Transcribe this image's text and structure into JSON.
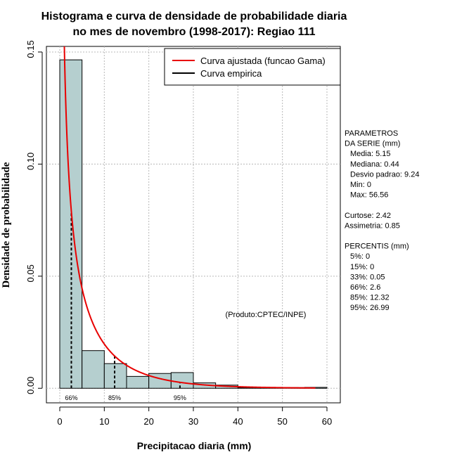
{
  "chart_data": {
    "type": "bar",
    "title_lines": [
      "Histograma e curva de densidade de probabilidade diaria",
      "no mes de novembro (1998-2017): Regiao 111"
    ],
    "xlabel": "Precipitacao diaria (mm)",
    "ylabel": "Densidade de probabilidade",
    "xlim": [
      -3,
      63
    ],
    "ylim": [
      -0.0065,
      0.1525
    ],
    "x_ticks": [
      0,
      10,
      20,
      30,
      40,
      50,
      60
    ],
    "x_tick_labels": [
      "0",
      "10",
      "20",
      "30",
      "40",
      "50",
      "60"
    ],
    "y_ticks": [
      0.0,
      0.05,
      0.1,
      0.15
    ],
    "y_tick_labels": [
      "0.00",
      "0.05",
      "0.10",
      "0.15"
    ],
    "bin_edges": [
      0,
      5,
      10,
      15,
      20,
      25,
      30,
      35,
      40,
      45,
      50,
      55,
      60
    ],
    "bar_values": [
      0.1465,
      0.0168,
      0.011,
      0.0053,
      0.0066,
      0.007,
      0.0024,
      0.0014,
      0.0003,
      0.0003,
      0.0003,
      0.0004
    ],
    "bar_fill": "#b5cfcf",
    "curve": {
      "name": "Curva ajustada (funcao Gama)",
      "color": "#e80000",
      "type": "gamma",
      "shape": 0.44,
      "scale": 11.7
    },
    "empirical": {
      "name": "Curva empirica",
      "color": "#000000"
    },
    "percentile_markers": [
      {
        "x": 2.6,
        "label": "66%"
      },
      {
        "x": 12.32,
        "label": "85%"
      },
      {
        "x": 26.99,
        "label": "95%"
      }
    ],
    "legend_position": "top-right",
    "credit": "(Produto:CPTEC/INPE)",
    "stats_lines": [
      "PARAMETROS",
      "DA SERIE (mm)",
      "  Media: 5.15",
      "  Mediana: 0.44",
      "  Desvio padrao: 9.24",
      "  Min: 0",
      "  Max: 56.56",
      "",
      "Curtose: 2.42",
      "Assimetria: 0.85",
      "",
      "PERCENTIS (mm)",
      "  5%: 0",
      "  15%: 0",
      "  33%: 0.05",
      "  66%: 2.6",
      "  85%: 12.32",
      "  95%: 26.99"
    ],
    "grid": true
  }
}
